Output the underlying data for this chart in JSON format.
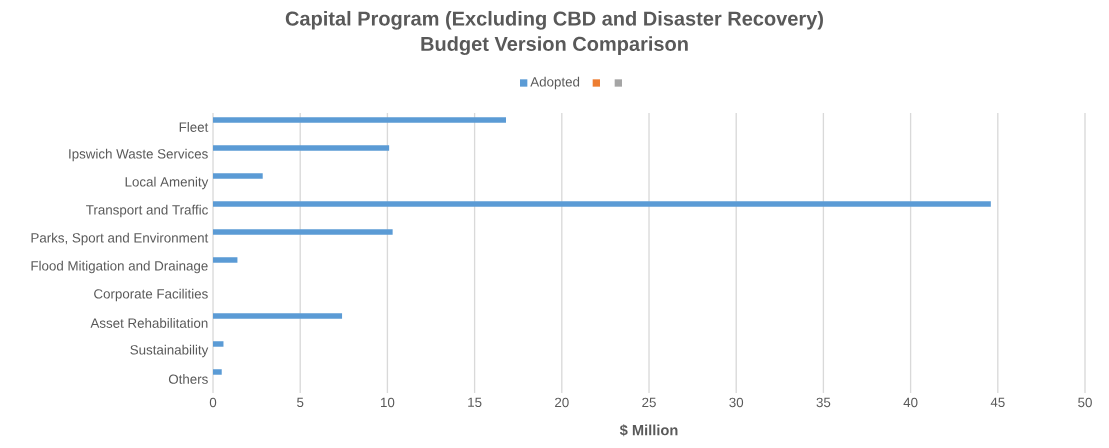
{
  "chart_data": {
    "type": "bar",
    "orientation": "horizontal",
    "title": "Capital Program (Excluding CBD and Disaster Recovery)\nBudget Version Comparison",
    "xlabel": "$ Million",
    "categories": [
      "Fleet",
      "Ipswich Waste Services",
      "Local Amenity",
      "Transport and Traffic",
      "Parks, Sport and Environment",
      "Flood Mitigation and Drainage",
      "Corporate Facilities",
      "Asset Rehabilitation",
      "Sustainability",
      "Others"
    ],
    "series": [
      {
        "name": "Adopted",
        "color": "#5b9bd5",
        "values": [
          16.8,
          10.1,
          2.85,
          44.6,
          10.3,
          1.4,
          0,
          7.4,
          0.6,
          0.5
        ]
      },
      {
        "color": "#ed7d31",
        "values": [
          null,
          null,
          null,
          null,
          null,
          null,
          null,
          null,
          null,
          null
        ]
      },
      {
        "color": "#a5a5a5",
        "values": [
          null,
          null,
          null,
          null,
          null,
          null,
          null,
          null,
          null,
          null
        ]
      }
    ],
    "xlim": [
      0,
      50
    ],
    "xticks": [
      0,
      5,
      10,
      15,
      20,
      25,
      30,
      35,
      40,
      45,
      50
    ],
    "grid": "x",
    "legend": "top"
  }
}
